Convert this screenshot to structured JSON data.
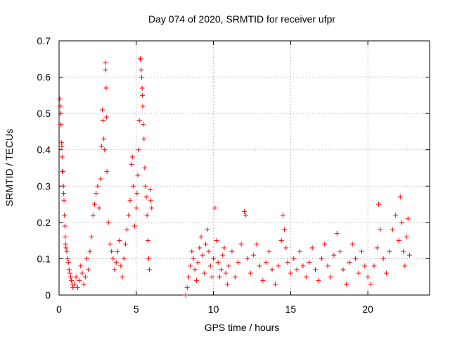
{
  "chart_data": {
    "type": "scatter",
    "title": "Day 074 of 2020, SRMTID for receiver ufpr",
    "xlabel": "GPS time / hours",
    "ylabel": "SRMTID / TECUs",
    "xlim": [
      0,
      24
    ],
    "ylim": [
      0,
      0.7
    ],
    "xticks": [
      0,
      5,
      10,
      15,
      20
    ],
    "xtick_labels": [
      "0",
      "5",
      "10",
      "15",
      "20"
    ],
    "yticks": [
      0,
      0.1,
      0.2,
      0.3,
      0.4,
      0.5,
      0.6,
      0.7
    ],
    "ytick_labels": [
      "0",
      "0.1",
      "0.2",
      "0.3",
      "0.4",
      "0.5",
      "0.6",
      "0.7"
    ],
    "grid": true,
    "marker": "+",
    "color": "#ff0000",
    "series": [
      {
        "name": "SRMTID",
        "points": [
          [
            0.05,
            0.54
          ],
          [
            0.08,
            0.52
          ],
          [
            0.1,
            0.5
          ],
          [
            0.12,
            0.47
          ],
          [
            0.15,
            0.42
          ],
          [
            0.18,
            0.41
          ],
          [
            0.2,
            0.38
          ],
          [
            0.22,
            0.34
          ],
          [
            0.25,
            0.34
          ],
          [
            0.28,
            0.3
          ],
          [
            0.3,
            0.28
          ],
          [
            0.32,
            0.26
          ],
          [
            0.35,
            0.22
          ],
          [
            0.38,
            0.19
          ],
          [
            0.4,
            0.16
          ],
          [
            0.42,
            0.14
          ],
          [
            0.45,
            0.13
          ],
          [
            0.5,
            0.12
          ],
          [
            0.55,
            0.1
          ],
          [
            0.6,
            0.09
          ],
          [
            0.65,
            0.07
          ],
          [
            0.7,
            0.06
          ],
          [
            0.75,
            0.05
          ],
          [
            0.8,
            0.04
          ],
          [
            0.85,
            0.03
          ],
          [
            0.9,
            0.02
          ],
          [
            1.0,
            0.03
          ],
          [
            1.1,
            0.05
          ],
          [
            1.2,
            0.02
          ],
          [
            1.3,
            0.04
          ],
          [
            1.4,
            0.08
          ],
          [
            1.5,
            0.06
          ],
          [
            1.6,
            0.03
          ],
          [
            1.7,
            0.05
          ],
          [
            1.8,
            0.1
          ],
          [
            1.9,
            0.07
          ],
          [
            2.0,
            0.12
          ],
          [
            2.1,
            0.16
          ],
          [
            2.2,
            0.22
          ],
          [
            2.3,
            0.25
          ],
          [
            2.4,
            0.28
          ],
          [
            2.5,
            0.3
          ],
          [
            2.6,
            0.24
          ],
          [
            2.7,
            0.32
          ],
          [
            2.75,
            0.41
          ],
          [
            2.8,
            0.51
          ],
          [
            2.85,
            0.48
          ],
          [
            2.9,
            0.43
          ],
          [
            2.95,
            0.4
          ],
          [
            3.0,
            0.64
          ],
          [
            3.02,
            0.62
          ],
          [
            3.05,
            0.57
          ],
          [
            3.08,
            0.49
          ],
          [
            3.1,
            0.34
          ],
          [
            3.2,
            0.2
          ],
          [
            3.3,
            0.14
          ],
          [
            3.4,
            0.12
          ],
          [
            3.5,
            0.1
          ],
          [
            3.6,
            0.07
          ],
          [
            3.7,
            0.09
          ],
          [
            3.8,
            0.12
          ],
          [
            3.9,
            0.15
          ],
          [
            4.0,
            0.08
          ],
          [
            4.1,
            0.05
          ],
          [
            4.2,
            0.1
          ],
          [
            4.3,
            0.14
          ],
          [
            4.4,
            0.18
          ],
          [
            4.5,
            0.22
          ],
          [
            4.6,
            0.26
          ],
          [
            4.7,
            0.36
          ],
          [
            4.75,
            0.38
          ],
          [
            4.8,
            0.3
          ],
          [
            4.9,
            0.19
          ],
          [
            5.0,
            0.24
          ],
          [
            5.05,
            0.28
          ],
          [
            5.1,
            0.33
          ],
          [
            5.15,
            0.4
          ],
          [
            5.2,
            0.48
          ],
          [
            5.25,
            0.65
          ],
          [
            5.3,
            0.65
          ],
          [
            5.32,
            0.62
          ],
          [
            5.35,
            0.6
          ],
          [
            5.38,
            0.57
          ],
          [
            5.4,
            0.55
          ],
          [
            5.42,
            0.52
          ],
          [
            5.45,
            0.47
          ],
          [
            5.5,
            0.43
          ],
          [
            5.55,
            0.35
          ],
          [
            5.6,
            0.3
          ],
          [
            5.65,
            0.27
          ],
          [
            5.7,
            0.22
          ],
          [
            5.75,
            0.15
          ],
          [
            5.8,
            0.1
          ],
          [
            5.85,
            0.07
          ],
          [
            5.9,
            0.29
          ],
          [
            5.95,
            0.26
          ],
          [
            6.0,
            0.24
          ],
          [
            8.2,
            0.0
          ],
          [
            8.3,
            0.02
          ],
          [
            8.4,
            0.05
          ],
          [
            8.5,
            0.08
          ],
          [
            8.6,
            0.12
          ],
          [
            8.7,
            0.1
          ],
          [
            8.8,
            0.07
          ],
          [
            8.9,
            0.04
          ],
          [
            9.0,
            0.09
          ],
          [
            9.1,
            0.13
          ],
          [
            9.2,
            0.16
          ],
          [
            9.3,
            0.11
          ],
          [
            9.4,
            0.06
          ],
          [
            9.5,
            0.14
          ],
          [
            9.6,
            0.18
          ],
          [
            9.7,
            0.12
          ],
          [
            9.8,
            0.08
          ],
          [
            9.9,
            0.05
          ],
          [
            10.0,
            0.1
          ],
          [
            10.1,
            0.24
          ],
          [
            10.2,
            0.15
          ],
          [
            10.3,
            0.09
          ],
          [
            10.4,
            0.05
          ],
          [
            10.5,
            0.07
          ],
          [
            10.6,
            0.11
          ],
          [
            10.7,
            0.13
          ],
          [
            10.8,
            0.06
          ],
          [
            10.9,
            0.03
          ],
          [
            11.0,
            0.08
          ],
          [
            11.2,
            0.12
          ],
          [
            11.4,
            0.05
          ],
          [
            11.6,
            0.09
          ],
          [
            11.8,
            0.14
          ],
          [
            12.0,
            0.23
          ],
          [
            12.1,
            0.22
          ],
          [
            12.2,
            0.1
          ],
          [
            12.4,
            0.06
          ],
          [
            12.6,
            0.11
          ],
          [
            12.8,
            0.14
          ],
          [
            13.0,
            0.08
          ],
          [
            13.2,
            0.04
          ],
          [
            13.4,
            0.09
          ],
          [
            13.6,
            0.12
          ],
          [
            13.8,
            0.07
          ],
          [
            14.0,
            0.03
          ],
          [
            14.2,
            0.08
          ],
          [
            14.4,
            0.15
          ],
          [
            14.5,
            0.22
          ],
          [
            14.6,
            0.18
          ],
          [
            14.7,
            0.13
          ],
          [
            14.8,
            0.09
          ],
          [
            15.0,
            0.06
          ],
          [
            15.2,
            0.1
          ],
          [
            15.4,
            0.07
          ],
          [
            15.6,
            0.12
          ],
          [
            15.8,
            0.08
          ],
          [
            16.0,
            0.05
          ],
          [
            16.2,
            0.09
          ],
          [
            16.4,
            0.13
          ],
          [
            16.6,
            0.07
          ],
          [
            16.8,
            0.04
          ],
          [
            17.0,
            0.1
          ],
          [
            17.2,
            0.14
          ],
          [
            17.4,
            0.08
          ],
          [
            17.6,
            0.05
          ],
          [
            17.8,
            0.11
          ],
          [
            18.0,
            0.17
          ],
          [
            18.2,
            0.12
          ],
          [
            18.4,
            0.07
          ],
          [
            18.6,
            0.03
          ],
          [
            18.8,
            0.09
          ],
          [
            19.0,
            0.14
          ],
          [
            19.2,
            0.1
          ],
          [
            19.4,
            0.06
          ],
          [
            19.6,
            0.12
          ],
          [
            19.8,
            0.08
          ],
          [
            20.0,
            0.05
          ],
          [
            20.2,
            0.03
          ],
          [
            20.4,
            0.08
          ],
          [
            20.6,
            0.13
          ],
          [
            20.7,
            0.25
          ],
          [
            20.8,
            0.18
          ],
          [
            21.0,
            0.1
          ],
          [
            21.2,
            0.06
          ],
          [
            21.4,
            0.12
          ],
          [
            21.6,
            0.18
          ],
          [
            21.8,
            0.22
          ],
          [
            22.0,
            0.15
          ],
          [
            22.1,
            0.27
          ],
          [
            22.2,
            0.2
          ],
          [
            22.3,
            0.12
          ],
          [
            22.4,
            0.08
          ],
          [
            22.5,
            0.16
          ],
          [
            22.6,
            0.21
          ],
          [
            22.7,
            0.11
          ]
        ]
      }
    ]
  }
}
